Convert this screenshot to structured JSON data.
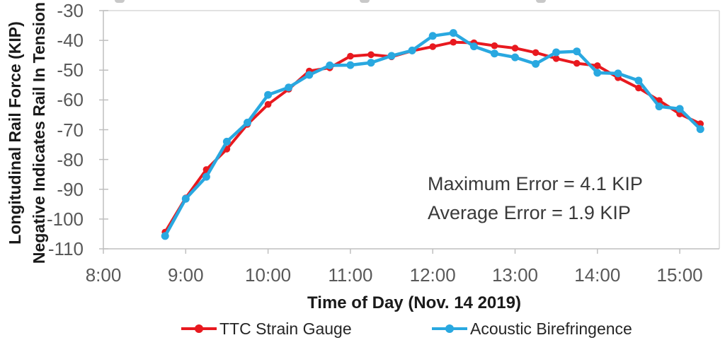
{
  "chart_data": {
    "type": "line",
    "x": [
      "8:45",
      "9:00",
      "9:15",
      "9:30",
      "9:45",
      "10:00",
      "10:15",
      "10:30",
      "10:45",
      "11:00",
      "11:15",
      "11:30",
      "11:45",
      "12:00",
      "12:15",
      "12:30",
      "12:45",
      "13:00",
      "13:15",
      "13:30",
      "13:45",
      "14:00",
      "14:15",
      "14:30",
      "14:45",
      "15:00",
      "15:15"
    ],
    "series": [
      {
        "name": "TTC Strain Gauge",
        "color": "#e8191f",
        "values": [
          -104.4,
          -92.9,
          -83.4,
          -76.5,
          -68.2,
          -61.5,
          -56.4,
          -50.3,
          -49.2,
          -45.3,
          -44.8,
          -45.5,
          -43.5,
          -42.1,
          -40.6,
          -40.8,
          -41.8,
          -42.6,
          -44.1,
          -46.1,
          -47.7,
          -48.5,
          -52.5,
          -56.0,
          -60.2,
          -64.7,
          -68.0
        ]
      },
      {
        "name": "Acoustic Birefringence",
        "color": "#29a8e0",
        "values": [
          -105.7,
          -93.2,
          -85.8,
          -74.0,
          -67.6,
          -58.3,
          -55.8,
          -51.6,
          -48.4,
          -48.3,
          -47.5,
          -45.2,
          -43.4,
          -38.5,
          -37.5,
          -42.0,
          -44.4,
          -45.7,
          -47.9,
          -44.0,
          -43.7,
          -50.9,
          -51.1,
          -53.5,
          -62.2,
          -63.0,
          -69.8
        ]
      }
    ],
    "title": "",
    "xlabel": "Time of Day (Nov. 14 2019)",
    "ylabel_line1": "Longitudinal Rail Force (KIP)",
    "ylabel_line2": "Negative Indicates Rail In Tension",
    "yticks": [
      -30,
      -40,
      -50,
      -60,
      -70,
      -80,
      -90,
      -100,
      -110
    ],
    "xticks": [
      "8:00",
      "9:00",
      "10:00",
      "11:00",
      "12:00",
      "13:00",
      "14:00",
      "15:00"
    ],
    "ylim": [
      -110,
      -30
    ],
    "xlim_hours": [
      8,
      15.48
    ],
    "grid": false,
    "legend_position": "bottom",
    "annotations": [
      "Maximum Error = 4.1 KIP",
      "Average Error = 1.9 KIP"
    ]
  },
  "annotation": {
    "max_error": "Maximum Error = 4.1 KIP",
    "avg_error": "Average Error = 1.9 KIP"
  },
  "colors": {
    "tick_label": "#595959",
    "axis_line": "#bfbfbf",
    "plot_border": "#d9d9d9",
    "series_red": "#e8191f",
    "series_blue": "#29a8e0"
  }
}
